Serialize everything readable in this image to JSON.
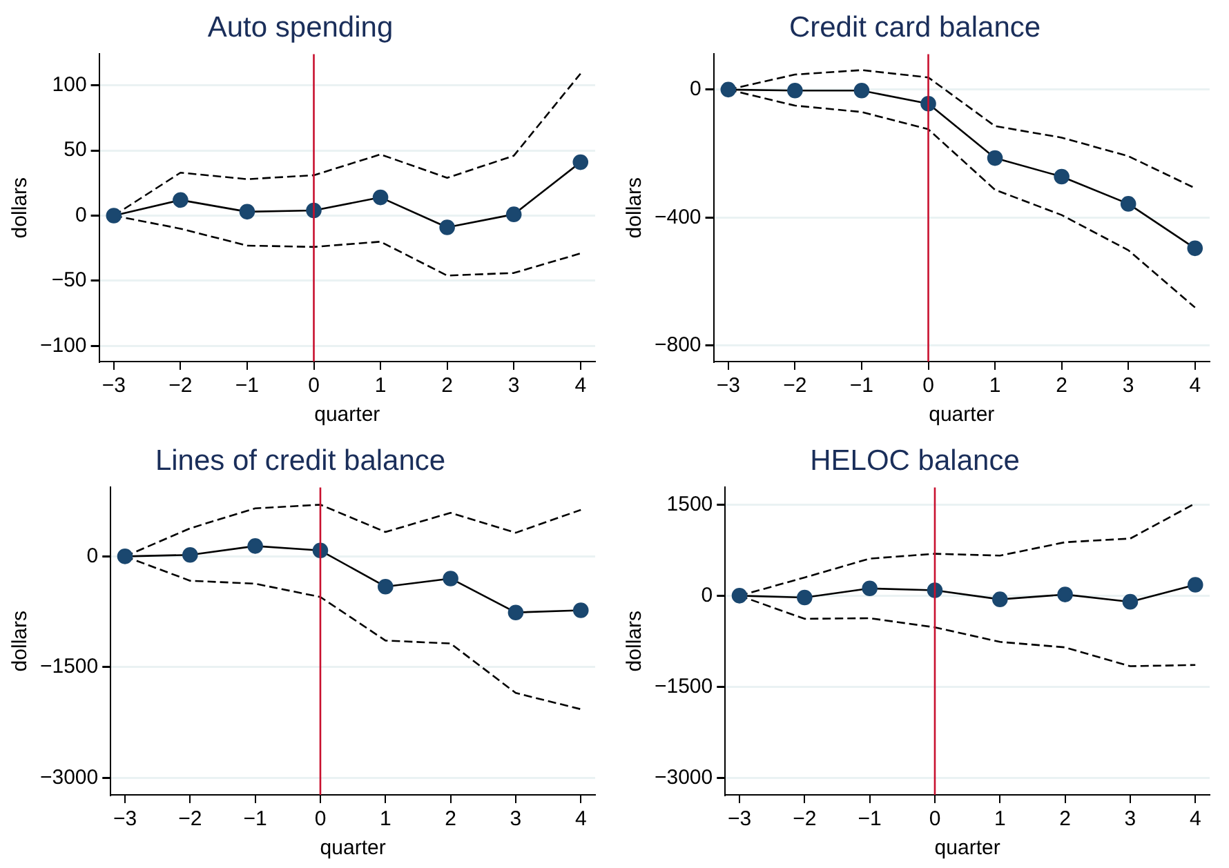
{
  "chart_data": [
    {
      "type": "line",
      "title": "Auto spending",
      "xlabel": "quarter",
      "ylabel": "dollars",
      "x": [
        -3,
        -2,
        -1,
        0,
        1,
        2,
        3,
        4
      ],
      "xlim": [
        -3.22,
        4.22
      ],
      "xticks": [
        {
          "value": -3,
          "label": "−3"
        },
        {
          "value": -2,
          "label": "−2"
        },
        {
          "value": -1,
          "label": "−1"
        },
        0,
        1,
        2,
        3,
        4
      ],
      "ylim": [
        -112,
        124
      ],
      "yticks": [
        {
          "value": -100,
          "label": "−100"
        },
        {
          "value": -50,
          "label": "−50"
        },
        0,
        50,
        100
      ],
      "grid": "y",
      "legend": false,
      "ref_lines": [
        {
          "axis": "x",
          "value": 0,
          "color": "#c8102e"
        }
      ],
      "series": [
        {
          "color": "#1a476f",
          "marker": "circle",
          "line_style": "solid",
          "values": [
            0,
            12,
            3,
            4,
            14,
            -9,
            1,
            41
          ]
        },
        {
          "color": "#000000",
          "marker": "none",
          "line_style": "dashed",
          "values": [
            0,
            33,
            28,
            31,
            47,
            29,
            46,
            109
          ]
        },
        {
          "color": "#000000",
          "marker": "none",
          "line_style": "dashed",
          "values": [
            0,
            -10,
            -23,
            -24,
            -20,
            -46,
            -44,
            -29
          ]
        }
      ]
    },
    {
      "type": "line",
      "title": "Credit card balance",
      "xlabel": "quarter",
      "ylabel": "dollars",
      "x": [
        -3,
        -2,
        -1,
        0,
        1,
        2,
        3,
        4
      ],
      "xlim": [
        -3.22,
        4.22
      ],
      "xticks": [
        {
          "value": -3,
          "label": "−3"
        },
        {
          "value": -2,
          "label": "−2"
        },
        {
          "value": -1,
          "label": "−1"
        },
        0,
        1,
        2,
        3,
        4
      ],
      "ylim": [
        -850,
        111
      ],
      "yticks": [
        {
          "value": -800,
          "label": "−800"
        },
        {
          "value": -400,
          "label": "−400"
        },
        0
      ],
      "grid": "y",
      "legend": false,
      "ref_lines": [
        {
          "axis": "x",
          "value": 0,
          "color": "#c8102e"
        }
      ],
      "series": [
        {
          "color": "#1a476f",
          "marker": "circle",
          "line_style": "solid",
          "values": [
            0,
            -3,
            -3,
            -44,
            -214,
            -272,
            -357,
            -496
          ]
        },
        {
          "color": "#000000",
          "marker": "none",
          "line_style": "dashed",
          "values": [
            0,
            47,
            61,
            38,
            -114,
            -150,
            -208,
            -308
          ]
        },
        {
          "color": "#000000",
          "marker": "none",
          "line_style": "dashed",
          "values": [
            0,
            -50,
            -70,
            -124,
            -313,
            -392,
            -502,
            -681
          ]
        }
      ]
    },
    {
      "type": "line",
      "title": "Lines of credit balance",
      "xlabel": "quarter",
      "ylabel": "dollars",
      "x": [
        -3,
        -2,
        -1,
        0,
        1,
        2,
        3,
        4
      ],
      "xlim": [
        -3.22,
        4.22
      ],
      "xticks": [
        {
          "value": -3,
          "label": "−3"
        },
        {
          "value": -2,
          "label": "−2"
        },
        {
          "value": -1,
          "label": "−1"
        },
        0,
        1,
        2,
        3,
        4
      ],
      "ylim": [
        -3230,
        934
      ],
      "yticks": [
        {
          "value": -3000,
          "label": "−3000"
        },
        {
          "value": -1500,
          "label": "−1500"
        },
        0
      ],
      "grid": "y",
      "legend": false,
      "ref_lines": [
        {
          "axis": "x",
          "value": 0,
          "color": "#c8102e"
        }
      ],
      "series": [
        {
          "color": "#1a476f",
          "marker": "circle",
          "line_style": "solid",
          "values": [
            0,
            20,
            140,
            80,
            -410,
            -300,
            -760,
            -730
          ]
        },
        {
          "color": "#000000",
          "marker": "none",
          "line_style": "dashed",
          "values": [
            0,
            380,
            650,
            700,
            330,
            590,
            320,
            630
          ]
        },
        {
          "color": "#000000",
          "marker": "none",
          "line_style": "dashed",
          "values": [
            0,
            -330,
            -370,
            -550,
            -1140,
            -1180,
            -1850,
            -2070
          ]
        }
      ]
    },
    {
      "type": "line",
      "title": "HELOC balance",
      "xlabel": "quarter",
      "ylabel": "dollars",
      "x": [
        -3,
        -2,
        -1,
        0,
        1,
        2,
        3,
        4
      ],
      "xlim": [
        -3.22,
        4.22
      ],
      "xticks": [
        {
          "value": -3,
          "label": "−3"
        },
        {
          "value": -2,
          "label": "−2"
        },
        {
          "value": -1,
          "label": "−1"
        },
        0,
        1,
        2,
        3,
        4
      ],
      "ylim": [
        -3277,
        1782
      ],
      "yticks": [
        {
          "value": -3000,
          "label": "−3000"
        },
        {
          "value": -1500,
          "label": "−1500"
        },
        0,
        1500
      ],
      "grid": "y",
      "legend": false,
      "ref_lines": [
        {
          "axis": "x",
          "value": 0,
          "color": "#c8102e"
        }
      ],
      "series": [
        {
          "color": "#1a476f",
          "marker": "circle",
          "line_style": "solid",
          "values": [
            0,
            -30,
            120,
            90,
            -60,
            20,
            -100,
            180
          ]
        },
        {
          "color": "#000000",
          "marker": "none",
          "line_style": "dashed",
          "values": [
            0,
            300,
            610,
            690,
            660,
            880,
            940,
            1520
          ]
        },
        {
          "color": "#000000",
          "marker": "none",
          "line_style": "dashed",
          "values": [
            0,
            -380,
            -370,
            -520,
            -760,
            -850,
            -1160,
            -1140
          ]
        }
      ]
    }
  ]
}
